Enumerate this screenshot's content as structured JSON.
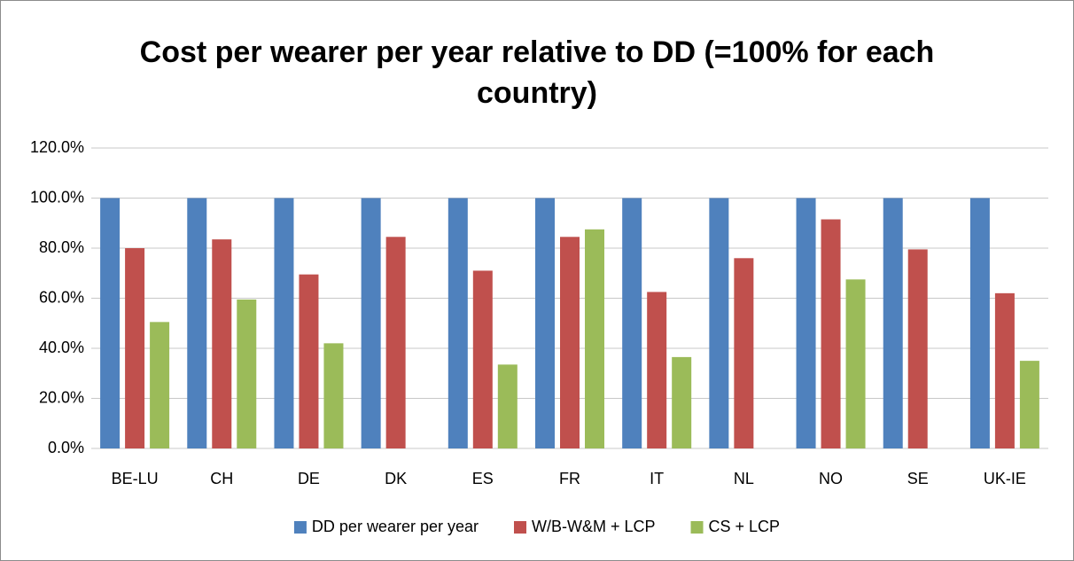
{
  "chart_data": {
    "type": "bar",
    "title": "Cost per wearer per year relative to DD (=100% for each country)",
    "categories": [
      "BE-LU",
      "CH",
      "DE",
      "DK",
      "ES",
      "FR",
      "IT",
      "NL",
      "NO",
      "SE",
      "UK-IE"
    ],
    "series": [
      {
        "name": "DD per wearer per year",
        "color": "#4f81bd",
        "values": [
          100,
          100,
          100,
          100,
          100,
          100,
          100,
          100,
          100,
          100,
          100
        ]
      },
      {
        "name": "W/B-W&M + LCP",
        "color": "#c0504d",
        "values": [
          80,
          83.5,
          69.5,
          84.5,
          71,
          84.5,
          62.5,
          76,
          91.5,
          79.5,
          62
        ]
      },
      {
        "name": "CS + LCP",
        "color": "#9bbb59",
        "values": [
          50.5,
          59.5,
          42,
          null,
          33.5,
          87.5,
          36.5,
          null,
          67.5,
          null,
          35
        ]
      }
    ],
    "ylim": [
      0,
      120
    ],
    "yticks": [
      {
        "value": 0,
        "label": "0.0%"
      },
      {
        "value": 20,
        "label": "20.0%"
      },
      {
        "value": 40,
        "label": "40.0%"
      },
      {
        "value": 60,
        "label": "60.0%"
      },
      {
        "value": 80,
        "label": "80.0%"
      },
      {
        "value": 100,
        "label": "100.0%"
      },
      {
        "value": 120,
        "label": "120.0%"
      }
    ],
    "grid": true,
    "legend": "bottom"
  }
}
